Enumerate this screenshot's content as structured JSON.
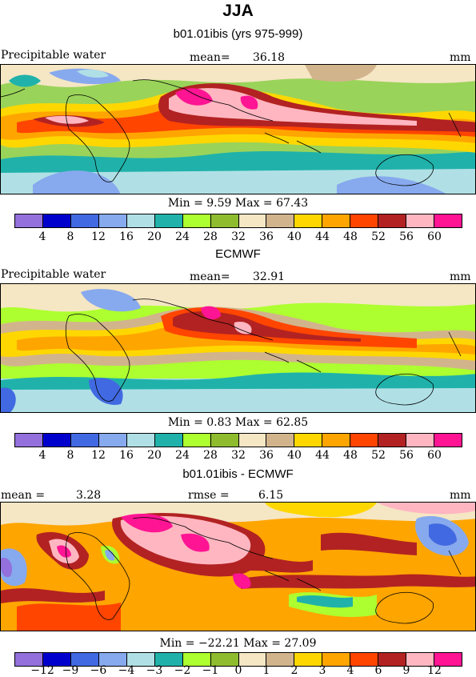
{
  "title": "JJA",
  "panels": [
    {
      "header": "b01.01ibis (yrs 975-999)",
      "left_label": "Precipitable water",
      "stat_label": "mean=",
      "stat_value": "36.18",
      "unit": "mm",
      "min_text": "Min =    9.59 Max =  67.43"
    },
    {
      "header": "ECMWF",
      "left_label": "Precipitable water",
      "stat_label": "mean=",
      "stat_value": "32.91",
      "unit": "mm",
      "min_text": "Min =    0.83 Max =  62.85"
    },
    {
      "header": "b01.01ibis - ECMWF",
      "left_label": "mean =",
      "left_value": "3.28",
      "stat_label": "rmse =",
      "stat_value": "6.15",
      "unit": "mm",
      "min_text": "Min = −22.21 Max =  27.09"
    }
  ],
  "colorbar_colors": [
    "#9370db",
    "#0000cd",
    "#4169e1",
    "#87a9ee",
    "#b0e0e6",
    "#20b2aa",
    "#adff2f",
    "#8fbc2f",
    "#f5e6c4",
    "#d2b48c",
    "#ffd700",
    "#ffa500",
    "#ff4500",
    "#b22222",
    "#ffb6c1",
    "#ff1493"
  ],
  "ticks_abs": [
    "4",
    "8",
    "12",
    "16",
    "20",
    "24",
    "28",
    "32",
    "36",
    "40",
    "44",
    "48",
    "52",
    "56",
    "60"
  ],
  "ticks_diff": [
    "−12",
    "−9",
    "−6",
    "−4",
    "−3",
    "−2",
    "−1",
    "0",
    "1",
    "2",
    "3",
    "4",
    "6",
    "9",
    "12"
  ]
}
